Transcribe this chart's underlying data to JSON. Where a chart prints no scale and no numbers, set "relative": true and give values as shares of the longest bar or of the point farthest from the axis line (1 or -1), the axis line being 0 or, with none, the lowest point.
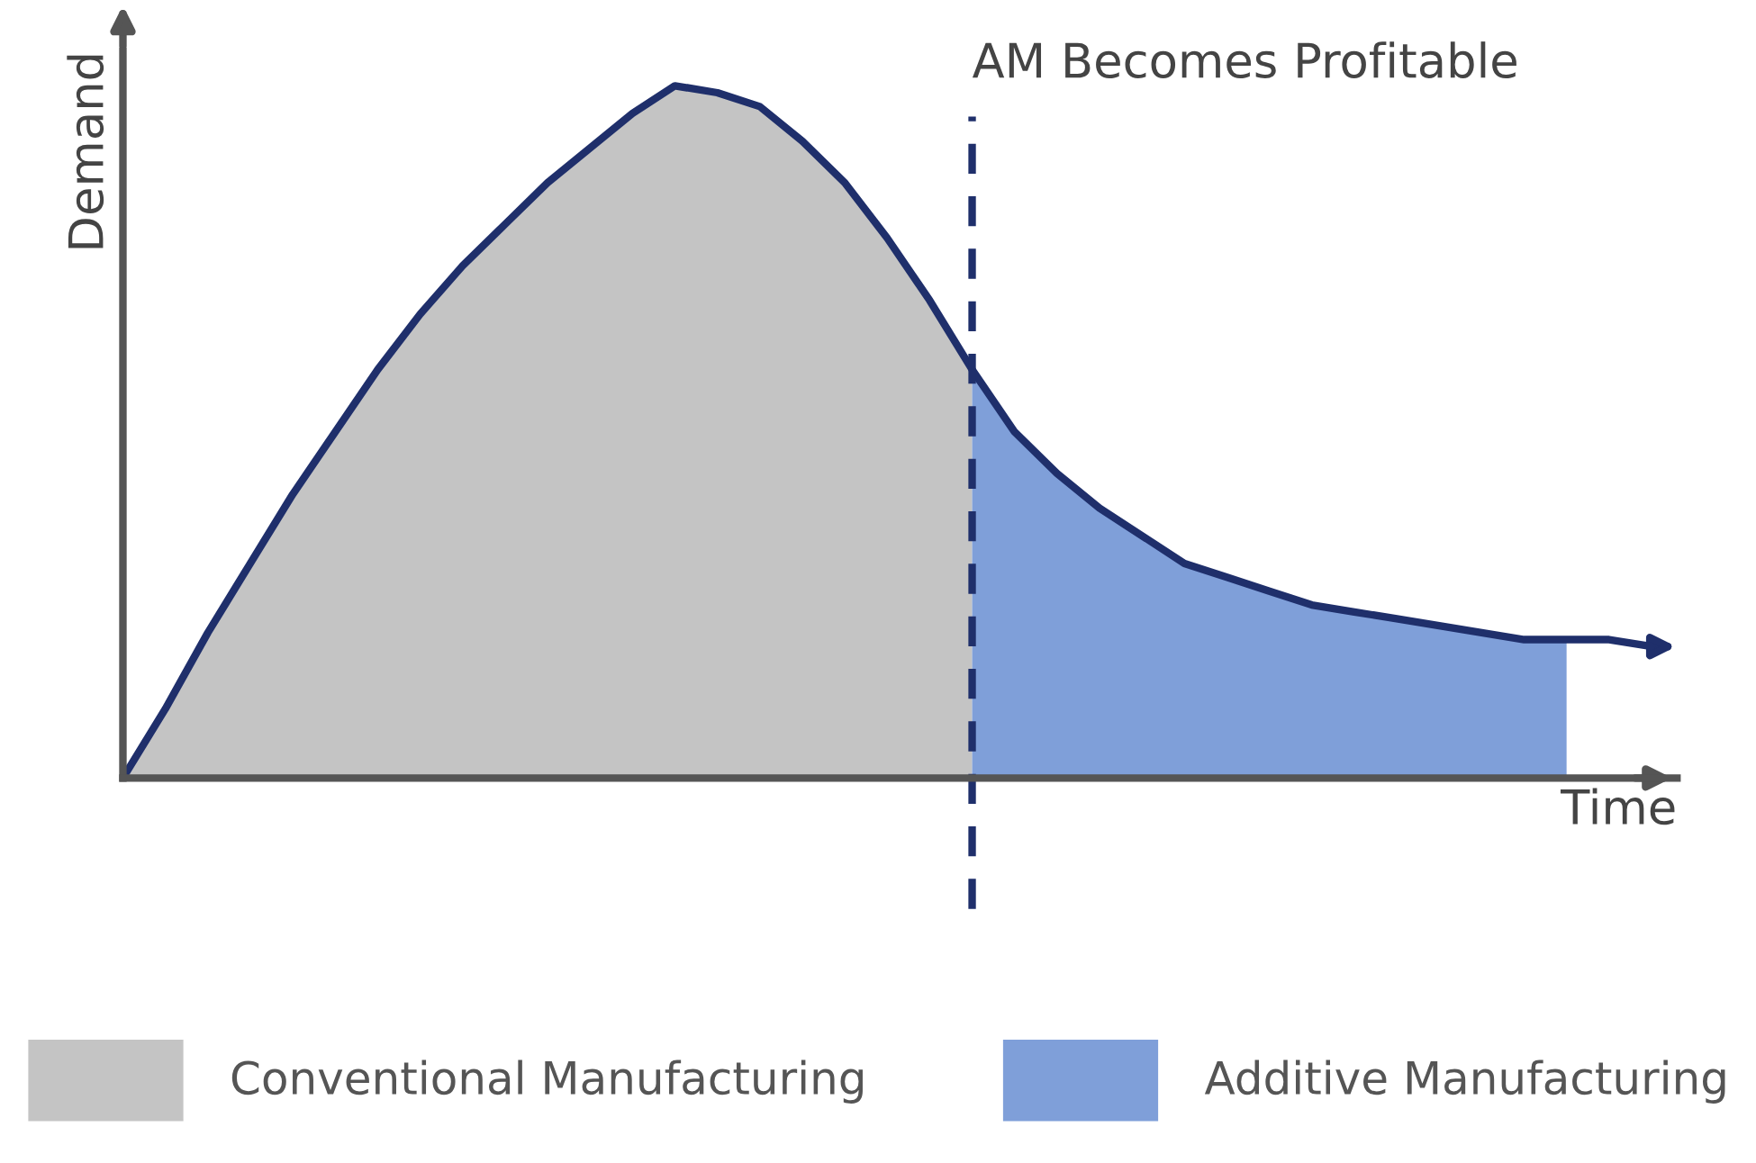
{
  "chart_data": {
    "type": "area",
    "relative": true,
    "xlabel": "Time",
    "ylabel": "Demand",
    "categories": [
      null,
      null,
      null,
      null,
      null,
      null,
      null,
      null,
      null,
      null,
      null,
      null,
      null,
      null,
      null,
      null,
      null,
      null,
      null,
      null,
      null,
      null,
      null,
      null,
      null,
      null,
      null,
      null,
      null,
      null,
      null,
      null,
      null,
      null,
      null,
      null,
      null
    ],
    "series": [
      {
        "name": "Conventional Manufacturing",
        "color": "#c4c4c4",
        "values": [
          0,
          0.1,
          0.21,
          0.31,
          0.41,
          0.5,
          0.59,
          0.67,
          0.74,
          0.8,
          0.86,
          0.91,
          0.96,
          1,
          0.99,
          0.97,
          0.92,
          0.86,
          0.78,
          0.69,
          0.59,
          null,
          null,
          null,
          null,
          null,
          null,
          null,
          null,
          null,
          null,
          null,
          null,
          null,
          null,
          null,
          null
        ]
      },
      {
        "name": "Additive Manufacturing",
        "color": "#7f9fd9",
        "values": [
          null,
          null,
          null,
          null,
          null,
          null,
          null,
          null,
          null,
          null,
          null,
          null,
          null,
          null,
          null,
          null,
          null,
          null,
          null,
          null,
          0.59,
          0.5,
          0.44,
          0.39,
          0.35,
          0.31,
          0.29,
          0.27,
          0.25,
          0.24,
          0.23,
          0.22,
          0.21,
          0.2,
          0.2,
          null,
          null
        ]
      },
      {
        "type": "line",
        "color": "#1f2f6b",
        "values": [
          0,
          0.1,
          0.21,
          0.31,
          0.41,
          0.5,
          0.59,
          0.67,
          0.74,
          0.8,
          0.86,
          0.91,
          0.96,
          1,
          0.99,
          0.97,
          0.92,
          0.86,
          0.78,
          0.69,
          0.59,
          0.5,
          0.44,
          0.39,
          0.35,
          0.31,
          0.29,
          0.27,
          0.25,
          0.24,
          0.23,
          0.22,
          0.21,
          0.2,
          0.2,
          0.2,
          0.19
        ]
      }
    ],
    "annotations": [
      "AM Becomes Profitable"
    ],
    "legend": "bottom"
  }
}
